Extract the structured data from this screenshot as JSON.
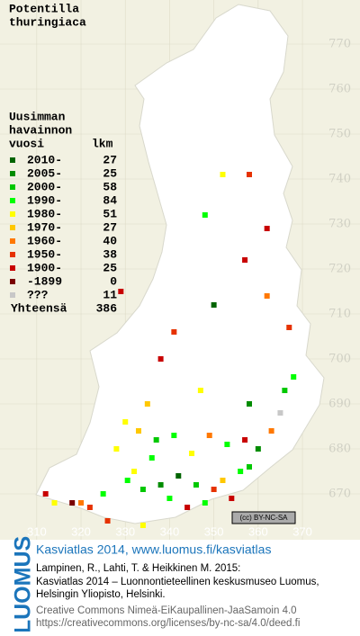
{
  "title": [
    "Potentilla",
    "thuringiaca"
  ],
  "legend": {
    "heading": [
      "Uusimman",
      "havainnon"
    ],
    "col_year": "vuosi",
    "col_count": "lkm",
    "entries": [
      {
        "label": "2010-",
        "count": 27,
        "color": "#006400"
      },
      {
        "label": "2005-",
        "count": 25,
        "color": "#008c00"
      },
      {
        "label": "2000-",
        "count": 58,
        "color": "#00c800"
      },
      {
        "label": "1990-",
        "count": 84,
        "color": "#00ff00"
      },
      {
        "label": "1980-",
        "count": 51,
        "color": "#ffff00"
      },
      {
        "label": "1970-",
        "count": 27,
        "color": "#ffc800"
      },
      {
        "label": "1960-",
        "count": 40,
        "color": "#ff7800"
      },
      {
        "label": "1950-",
        "count": 38,
        "color": "#e63200"
      },
      {
        "label": "1900-",
        "count": 25,
        "color": "#c80000"
      },
      {
        "label": "-1899",
        "count": 0,
        "color": "#7a0000"
      },
      {
        "label": "???",
        "count": 11,
        "color": "#c8c8c8"
      }
    ],
    "total_label": "Yhteensä",
    "total": 386
  },
  "map": {
    "xlim": [
      301.7,
      383
    ],
    "ylim": [
      659.8,
      779.8
    ],
    "xticks": [
      310,
      320,
      330,
      340,
      350,
      360,
      370
    ],
    "yticks": [
      770,
      760,
      750,
      740,
      730,
      720,
      710,
      700,
      690,
      680,
      670
    ],
    "points": [
      [
        330.5,
        673,
        3
      ],
      [
        332,
        675,
        4
      ],
      [
        334,
        671,
        2
      ],
      [
        336,
        678,
        3
      ],
      [
        338,
        672,
        1
      ],
      [
        340,
        669,
        3
      ],
      [
        342,
        674,
        0
      ],
      [
        344,
        667,
        8
      ],
      [
        346,
        672,
        2
      ],
      [
        348,
        668,
        3
      ],
      [
        350,
        671,
        7
      ],
      [
        352,
        673,
        5
      ],
      [
        354,
        669,
        8
      ],
      [
        356,
        675,
        3
      ],
      [
        358,
        676,
        2
      ],
      [
        360,
        680,
        1
      ],
      [
        325,
        670,
        3
      ],
      [
        322,
        667,
        7
      ],
      [
        318,
        668,
        9
      ],
      [
        328,
        680,
        4
      ],
      [
        333,
        684,
        5
      ],
      [
        337,
        682,
        2
      ],
      [
        341,
        683,
        3
      ],
      [
        345,
        679,
        4
      ],
      [
        349,
        683,
        6
      ],
      [
        353,
        681,
        3
      ],
      [
        357,
        682,
        8
      ],
      [
        363,
        684,
        6
      ],
      [
        365,
        688,
        10
      ],
      [
        358,
        690,
        1
      ],
      [
        347,
        693,
        4
      ],
      [
        335,
        690,
        5
      ],
      [
        330,
        686,
        4
      ],
      [
        338,
        700,
        8
      ],
      [
        329,
        715,
        8
      ],
      [
        341,
        706,
        7
      ],
      [
        350,
        712,
        0
      ],
      [
        357,
        722,
        8
      ],
      [
        362,
        714,
        6
      ],
      [
        367,
        707,
        7
      ],
      [
        348,
        732,
        3
      ],
      [
        362,
        729,
        8
      ],
      [
        352,
        741,
        4
      ],
      [
        358,
        741,
        7
      ],
      [
        320,
        668,
        6
      ],
      [
        312,
        670,
        8
      ],
      [
        314,
        668,
        4
      ],
      [
        368,
        696,
        3
      ],
      [
        366,
        693,
        2
      ],
      [
        326,
        664,
        7
      ],
      [
        334,
        663,
        4
      ]
    ]
  },
  "badge": "(cc) BY-NC-SA",
  "footer": {
    "logo": "LUOMUS",
    "link": "Kasviatlas 2014, www.luomus.fi/kasviatlas",
    "citation": [
      "Lampinen, R., Lahti, T. & Heikkinen M. 2015:",
      "Kasviatlas 2014 – Luonnontieteellinen keskusmuseo Luomus,",
      "Helsingin Yliopisto, Helsinki."
    ],
    "license": [
      "Creative Commons Nimeä-EiKaupallinen-JaaSamoin 4.0",
      "https://creativecommons.org/licenses/by-nc-sa/4.0/deed.fi"
    ]
  }
}
